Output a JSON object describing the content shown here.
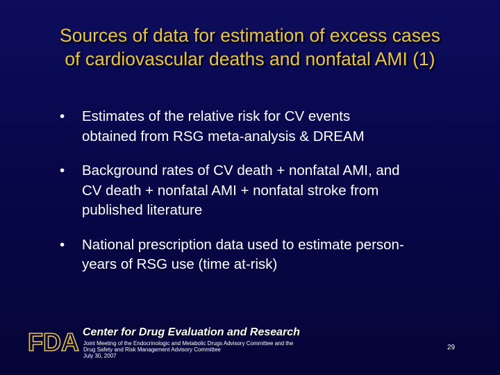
{
  "slide": {
    "title_line1": "Sources of data for estimation of excess cases",
    "title_line2": "of cardiovascular deaths and nonfatal AMI (1)",
    "bullet_char": "•",
    "bullets": [
      {
        "lines": [
          "Estimates of the relative risk for CV events",
          "obtained from RSG meta-analysis & DREAM"
        ]
      },
      {
        "lines": [
          "Background rates of CV death + nonfatal AMI, and",
          "CV death + nonfatal AMI + nonfatal stroke from",
          "published literature"
        ]
      },
      {
        "lines": [
          "National prescription data used to estimate person-",
          "years of RSG use (time at-risk)"
        ]
      }
    ]
  },
  "footer": {
    "logo_text": "FDA",
    "center_name": "Center for Drug Evaluation and Research",
    "meeting_line1": "Joint Meeting of the Endocrinologic and Metabolic Drugs Advisory Committee and the",
    "meeting_line2": "Drug Safety and Risk Management Advisory Committee",
    "meeting_line3": "July 30, 2007",
    "page_number": "29"
  },
  "colors": {
    "background": "#07074a",
    "title": "#e8c44a",
    "text": "#ffffff",
    "logo": "#e8c44a"
  }
}
